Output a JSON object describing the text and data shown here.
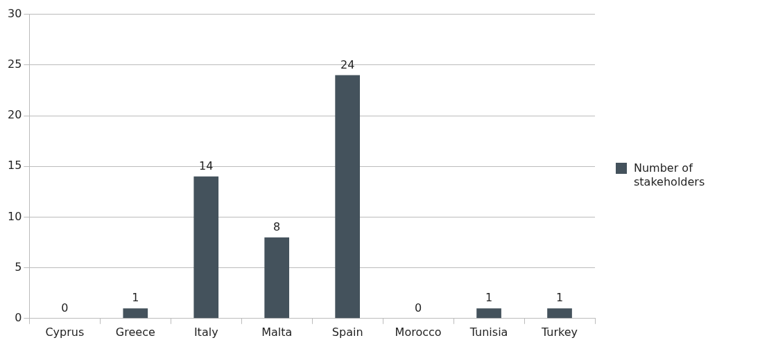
{
  "chart_data": {
    "type": "bar",
    "categories": [
      "Cyprus",
      "Greece",
      "Italy",
      "Malta",
      "Spain",
      "Morocco",
      "Tunisia",
      "Turkey"
    ],
    "series": [
      {
        "name": "Number of stakeholders",
        "color": "#44525c",
        "values": [
          0,
          1,
          14,
          8,
          24,
          0,
          1,
          1
        ]
      }
    ],
    "ylim": [
      0,
      30
    ],
    "yticks": [
      0,
      5,
      10,
      15,
      20,
      25,
      30
    ],
    "grid": "y",
    "legend": "right",
    "data_labels": true
  }
}
